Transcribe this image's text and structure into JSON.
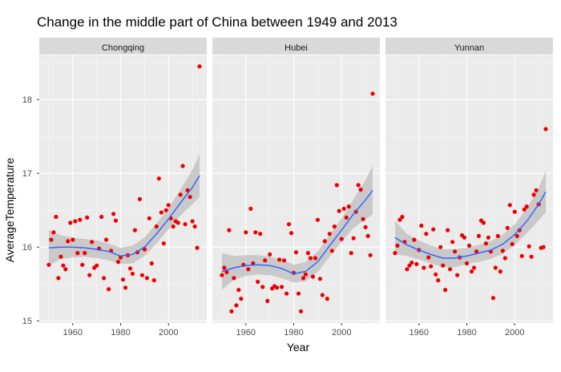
{
  "chart_data": {
    "type": "scatter",
    "title": "Change in the middle part of China between 1949 and 2013",
    "xlabel": "Year",
    "ylabel": "AverageTemperature",
    "xlim": [
      1946,
      2016
    ],
    "ylim": [
      14.97,
      18.6
    ],
    "x_ticks": [
      1960,
      1980,
      2000
    ],
    "y_ticks": [
      15,
      16,
      17,
      18
    ],
    "grid": true,
    "point_color": "#ee0000",
    "smooth_color": "#3366ff",
    "ribbon_color": "#bdbdbd",
    "panel_background": "#ebebeb",
    "strip_background": "#d9d9d9",
    "facets": [
      {
        "name": "Chongqing",
        "points": [
          {
            "x": 1950,
            "y": 15.76
          },
          {
            "x": 1951,
            "y": 16.1
          },
          {
            "x": 1952,
            "y": 16.2
          },
          {
            "x": 1953,
            "y": 16.41
          },
          {
            "x": 1954,
            "y": 15.58
          },
          {
            "x": 1955,
            "y": 15.87
          },
          {
            "x": 1956,
            "y": 15.75
          },
          {
            "x": 1957,
            "y": 15.7
          },
          {
            "x": 1958,
            "y": 16.08
          },
          {
            "x": 1959,
            "y": 16.33
          },
          {
            "x": 1960,
            "y": 16.1
          },
          {
            "x": 1961,
            "y": 16.35
          },
          {
            "x": 1962,
            "y": 15.92
          },
          {
            "x": 1963,
            "y": 16.37
          },
          {
            "x": 1964,
            "y": 15.76
          },
          {
            "x": 1965,
            "y": 15.92
          },
          {
            "x": 1966,
            "y": 16.4
          },
          {
            "x": 1967,
            "y": 15.62
          },
          {
            "x": 1968,
            "y": 16.07
          },
          {
            "x": 1969,
            "y": 15.72
          },
          {
            "x": 1970,
            "y": 15.75
          },
          {
            "x": 1971,
            "y": 15.98
          },
          {
            "x": 1972,
            "y": 16.41
          },
          {
            "x": 1973,
            "y": 15.58
          },
          {
            "x": 1974,
            "y": 16.1
          },
          {
            "x": 1975,
            "y": 15.43
          },
          {
            "x": 1976,
            "y": 15.95
          },
          {
            "x": 1977,
            "y": 16.45
          },
          {
            "x": 1978,
            "y": 16.36
          },
          {
            "x": 1979,
            "y": 15.8
          },
          {
            "x": 1980,
            "y": 15.86
          },
          {
            "x": 1981,
            "y": 15.56
          },
          {
            "x": 1982,
            "y": 15.45
          },
          {
            "x": 1983,
            "y": 15.89
          },
          {
            "x": 1984,
            "y": 15.71
          },
          {
            "x": 1985,
            "y": 15.64
          },
          {
            "x": 1986,
            "y": 16.23
          },
          {
            "x": 1987,
            "y": 15.93
          },
          {
            "x": 1988,
            "y": 16.65
          },
          {
            "x": 1989,
            "y": 15.62
          },
          {
            "x": 1990,
            "y": 15.97
          },
          {
            "x": 1991,
            "y": 15.58
          },
          {
            "x": 1992,
            "y": 16.39
          },
          {
            "x": 1993,
            "y": 15.78
          },
          {
            "x": 1994,
            "y": 15.55
          },
          {
            "x": 1995,
            "y": 16.28
          },
          {
            "x": 1996,
            "y": 16.93
          },
          {
            "x": 1997,
            "y": 16.47
          },
          {
            "x": 1998,
            "y": 16.05
          },
          {
            "x": 1999,
            "y": 16.5
          },
          {
            "x": 2000,
            "y": 16.57
          },
          {
            "x": 2001,
            "y": 16.39
          },
          {
            "x": 2002,
            "y": 16.28
          },
          {
            "x": 2003,
            "y": 16.35
          },
          {
            "x": 2004,
            "y": 16.33
          },
          {
            "x": 2005,
            "y": 16.71
          },
          {
            "x": 2006,
            "y": 17.1
          },
          {
            "x": 2007,
            "y": 16.31
          },
          {
            "x": 2008,
            "y": 16.77
          },
          {
            "x": 2009,
            "y": 16.68
          },
          {
            "x": 2010,
            "y": 16.35
          },
          {
            "x": 2011,
            "y": 16.28
          },
          {
            "x": 2012,
            "y": 15.99
          },
          {
            "x": 2013,
            "y": 18.45
          }
        ],
        "smooth": [
          {
            "x": 1950,
            "y": 15.99,
            "lo": 15.75,
            "hi": 16.23
          },
          {
            "x": 1955,
            "y": 16.0,
            "lo": 15.84,
            "hi": 16.16
          },
          {
            "x": 1960,
            "y": 16.0,
            "lo": 15.86,
            "hi": 16.13
          },
          {
            "x": 1965,
            "y": 15.99,
            "lo": 15.87,
            "hi": 16.11
          },
          {
            "x": 1970,
            "y": 15.97,
            "lo": 15.85,
            "hi": 16.09
          },
          {
            "x": 1975,
            "y": 15.94,
            "lo": 15.82,
            "hi": 16.05
          },
          {
            "x": 1980,
            "y": 15.88,
            "lo": 15.77,
            "hi": 15.99
          },
          {
            "x": 1985,
            "y": 15.9,
            "lo": 15.78,
            "hi": 16.02
          },
          {
            "x": 1990,
            "y": 16.0,
            "lo": 15.88,
            "hi": 16.13
          },
          {
            "x": 1995,
            "y": 16.18,
            "lo": 16.05,
            "hi": 16.32
          },
          {
            "x": 2000,
            "y": 16.38,
            "lo": 16.24,
            "hi": 16.53
          },
          {
            "x": 2005,
            "y": 16.6,
            "lo": 16.43,
            "hi": 16.78
          },
          {
            "x": 2010,
            "y": 16.81,
            "lo": 16.58,
            "hi": 17.05
          },
          {
            "x": 2013,
            "y": 16.97,
            "lo": 16.68,
            "hi": 17.26
          }
        ]
      },
      {
        "name": "Hubei",
        "points": [
          {
            "x": 1950,
            "y": 15.62
          },
          {
            "x": 1951,
            "y": 15.72
          },
          {
            "x": 1952,
            "y": 15.66
          },
          {
            "x": 1953,
            "y": 16.23
          },
          {
            "x": 1954,
            "y": 15.13
          },
          {
            "x": 1955,
            "y": 15.58
          },
          {
            "x": 1956,
            "y": 15.21
          },
          {
            "x": 1957,
            "y": 15.42
          },
          {
            "x": 1958,
            "y": 15.3
          },
          {
            "x": 1959,
            "y": 15.76
          },
          {
            "x": 1960,
            "y": 16.2
          },
          {
            "x": 1961,
            "y": 15.7
          },
          {
            "x": 1962,
            "y": 16.52
          },
          {
            "x": 1963,
            "y": 15.78
          },
          {
            "x": 1964,
            "y": 16.2
          },
          {
            "x": 1965,
            "y": 15.53
          },
          {
            "x": 1966,
            "y": 16.18
          },
          {
            "x": 1967,
            "y": 15.46
          },
          {
            "x": 1968,
            "y": 15.82
          },
          {
            "x": 1969,
            "y": 15.27
          },
          {
            "x": 1970,
            "y": 15.9
          },
          {
            "x": 1971,
            "y": 15.44
          },
          {
            "x": 1972,
            "y": 15.47
          },
          {
            "x": 1973,
            "y": 15.45
          },
          {
            "x": 1974,
            "y": 15.83
          },
          {
            "x": 1975,
            "y": 15.46
          },
          {
            "x": 1976,
            "y": 15.82
          },
          {
            "x": 1977,
            "y": 15.37
          },
          {
            "x": 1978,
            "y": 16.31
          },
          {
            "x": 1979,
            "y": 16.19
          },
          {
            "x": 1980,
            "y": 15.65
          },
          {
            "x": 1981,
            "y": 15.93
          },
          {
            "x": 1982,
            "y": 15.37
          },
          {
            "x": 1983,
            "y": 15.13
          },
          {
            "x": 1984,
            "y": 15.58
          },
          {
            "x": 1985,
            "y": 15.63
          },
          {
            "x": 1986,
            "y": 15.92
          },
          {
            "x": 1987,
            "y": 15.85
          },
          {
            "x": 1988,
            "y": 15.6
          },
          {
            "x": 1989,
            "y": 15.85
          },
          {
            "x": 1990,
            "y": 16.37
          },
          {
            "x": 1991,
            "y": 15.57
          },
          {
            "x": 1992,
            "y": 15.35
          },
          {
            "x": 1993,
            "y": 16.08
          },
          {
            "x": 1994,
            "y": 15.3
          },
          {
            "x": 1995,
            "y": 16.18
          },
          {
            "x": 1996,
            "y": 15.95
          },
          {
            "x": 1997,
            "y": 16.28
          },
          {
            "x": 1998,
            "y": 16.84
          },
          {
            "x": 1999,
            "y": 16.49
          },
          {
            "x": 2000,
            "y": 16.11
          },
          {
            "x": 2001,
            "y": 16.52
          },
          {
            "x": 2002,
            "y": 16.4
          },
          {
            "x": 2003,
            "y": 16.55
          },
          {
            "x": 2004,
            "y": 15.92
          },
          {
            "x": 2005,
            "y": 16.12
          },
          {
            "x": 2006,
            "y": 16.48
          },
          {
            "x": 2007,
            "y": 16.84
          },
          {
            "x": 2008,
            "y": 16.78
          },
          {
            "x": 2009,
            "y": 16.38
          },
          {
            "x": 2010,
            "y": 16.27
          },
          {
            "x": 2011,
            "y": 16.15
          },
          {
            "x": 2012,
            "y": 15.89
          },
          {
            "x": 2013,
            "y": 18.08
          }
        ],
        "smooth": [
          {
            "x": 1950,
            "y": 15.67,
            "lo": 15.42,
            "hi": 15.92
          },
          {
            "x": 1955,
            "y": 15.72,
            "lo": 15.56,
            "hi": 15.88
          },
          {
            "x": 1960,
            "y": 15.75,
            "lo": 15.61,
            "hi": 15.89
          },
          {
            "x": 1965,
            "y": 15.76,
            "lo": 15.63,
            "hi": 15.89
          },
          {
            "x": 1970,
            "y": 15.75,
            "lo": 15.62,
            "hi": 15.87
          },
          {
            "x": 1975,
            "y": 15.71,
            "lo": 15.58,
            "hi": 15.83
          },
          {
            "x": 1980,
            "y": 15.64,
            "lo": 15.52,
            "hi": 15.76
          },
          {
            "x": 1985,
            "y": 15.67,
            "lo": 15.54,
            "hi": 15.8
          },
          {
            "x": 1990,
            "y": 15.8,
            "lo": 15.66,
            "hi": 15.94
          },
          {
            "x": 1995,
            "y": 16.02,
            "lo": 15.87,
            "hi": 16.17
          },
          {
            "x": 2000,
            "y": 16.23,
            "lo": 16.07,
            "hi": 16.39
          },
          {
            "x": 2005,
            "y": 16.45,
            "lo": 16.26,
            "hi": 16.65
          },
          {
            "x": 2010,
            "y": 16.64,
            "lo": 16.38,
            "hi": 16.91
          },
          {
            "x": 2013,
            "y": 16.77,
            "lo": 16.44,
            "hi": 17.1
          }
        ]
      },
      {
        "name": "Yunnan",
        "points": [
          {
            "x": 1950,
            "y": 15.92
          },
          {
            "x": 1951,
            "y": 16.02
          },
          {
            "x": 1952,
            "y": 16.37
          },
          {
            "x": 1953,
            "y": 16.41
          },
          {
            "x": 1954,
            "y": 16.07
          },
          {
            "x": 1955,
            "y": 15.7
          },
          {
            "x": 1956,
            "y": 15.75
          },
          {
            "x": 1957,
            "y": 15.79
          },
          {
            "x": 1958,
            "y": 16.1
          },
          {
            "x": 1959,
            "y": 15.77
          },
          {
            "x": 1960,
            "y": 15.96
          },
          {
            "x": 1961,
            "y": 16.29
          },
          {
            "x": 1962,
            "y": 15.72
          },
          {
            "x": 1963,
            "y": 16.18
          },
          {
            "x": 1964,
            "y": 15.86
          },
          {
            "x": 1965,
            "y": 15.74
          },
          {
            "x": 1966,
            "y": 16.24
          },
          {
            "x": 1967,
            "y": 15.63
          },
          {
            "x": 1968,
            "y": 15.55
          },
          {
            "x": 1969,
            "y": 16.0
          },
          {
            "x": 1970,
            "y": 15.75
          },
          {
            "x": 1971,
            "y": 15.42
          },
          {
            "x": 1972,
            "y": 16.23
          },
          {
            "x": 1973,
            "y": 15.7
          },
          {
            "x": 1974,
            "y": 16.07
          },
          {
            "x": 1975,
            "y": 15.94
          },
          {
            "x": 1976,
            "y": 15.62
          },
          {
            "x": 1977,
            "y": 15.86
          },
          {
            "x": 1978,
            "y": 16.16
          },
          {
            "x": 1979,
            "y": 16.13
          },
          {
            "x": 1980,
            "y": 15.78
          },
          {
            "x": 1981,
            "y": 16.02
          },
          {
            "x": 1982,
            "y": 15.67
          },
          {
            "x": 1983,
            "y": 15.72
          },
          {
            "x": 1984,
            "y": 15.94
          },
          {
            "x": 1985,
            "y": 16.15
          },
          {
            "x": 1986,
            "y": 16.36
          },
          {
            "x": 1987,
            "y": 16.33
          },
          {
            "x": 1988,
            "y": 16.05
          },
          {
            "x": 1989,
            "y": 16.13
          },
          {
            "x": 1990,
            "y": 15.94
          },
          {
            "x": 1991,
            "y": 15.31
          },
          {
            "x": 1992,
            "y": 15.72
          },
          {
            "x": 1993,
            "y": 16.15
          },
          {
            "x": 1994,
            "y": 15.67
          },
          {
            "x": 1995,
            "y": 15.95
          },
          {
            "x": 1996,
            "y": 15.85
          },
          {
            "x": 1997,
            "y": 16.26
          },
          {
            "x": 1998,
            "y": 16.57
          },
          {
            "x": 1999,
            "y": 16.04
          },
          {
            "x": 2000,
            "y": 16.48
          },
          {
            "x": 2001,
            "y": 16.15
          },
          {
            "x": 2002,
            "y": 16.23
          },
          {
            "x": 2003,
            "y": 15.88
          },
          {
            "x": 2004,
            "y": 16.51
          },
          {
            "x": 2005,
            "y": 16.55
          },
          {
            "x": 2006,
            "y": 16.01
          },
          {
            "x": 2007,
            "y": 15.87
          },
          {
            "x": 2008,
            "y": 16.71
          },
          {
            "x": 2009,
            "y": 16.77
          },
          {
            "x": 2010,
            "y": 16.58
          },
          {
            "x": 2011,
            "y": 15.99
          },
          {
            "x": 2012,
            "y": 16.0
          },
          {
            "x": 2013,
            "y": 17.6
          }
        ],
        "smooth": [
          {
            "x": 1950,
            "y": 16.13,
            "lo": 15.9,
            "hi": 16.36
          },
          {
            "x": 1955,
            "y": 16.03,
            "lo": 15.88,
            "hi": 16.18
          },
          {
            "x": 1960,
            "y": 15.96,
            "lo": 15.83,
            "hi": 16.09
          },
          {
            "x": 1965,
            "y": 15.9,
            "lo": 15.78,
            "hi": 16.02
          },
          {
            "x": 1970,
            "y": 15.85,
            "lo": 15.73,
            "hi": 15.97
          },
          {
            "x": 1975,
            "y": 15.85,
            "lo": 15.73,
            "hi": 15.97
          },
          {
            "x": 1980,
            "y": 15.88,
            "lo": 15.77,
            "hi": 15.99
          },
          {
            "x": 1985,
            "y": 15.92,
            "lo": 15.8,
            "hi": 16.03
          },
          {
            "x": 1990,
            "y": 15.96,
            "lo": 15.84,
            "hi": 16.08
          },
          {
            "x": 1995,
            "y": 16.04,
            "lo": 15.91,
            "hi": 16.17
          },
          {
            "x": 2000,
            "y": 16.17,
            "lo": 16.03,
            "hi": 16.31
          },
          {
            "x": 2005,
            "y": 16.35,
            "lo": 16.19,
            "hi": 16.52
          },
          {
            "x": 2010,
            "y": 16.58,
            "lo": 16.36,
            "hi": 16.8
          },
          {
            "x": 2013,
            "y": 16.75,
            "lo": 16.47,
            "hi": 17.03
          }
        ]
      }
    ]
  }
}
